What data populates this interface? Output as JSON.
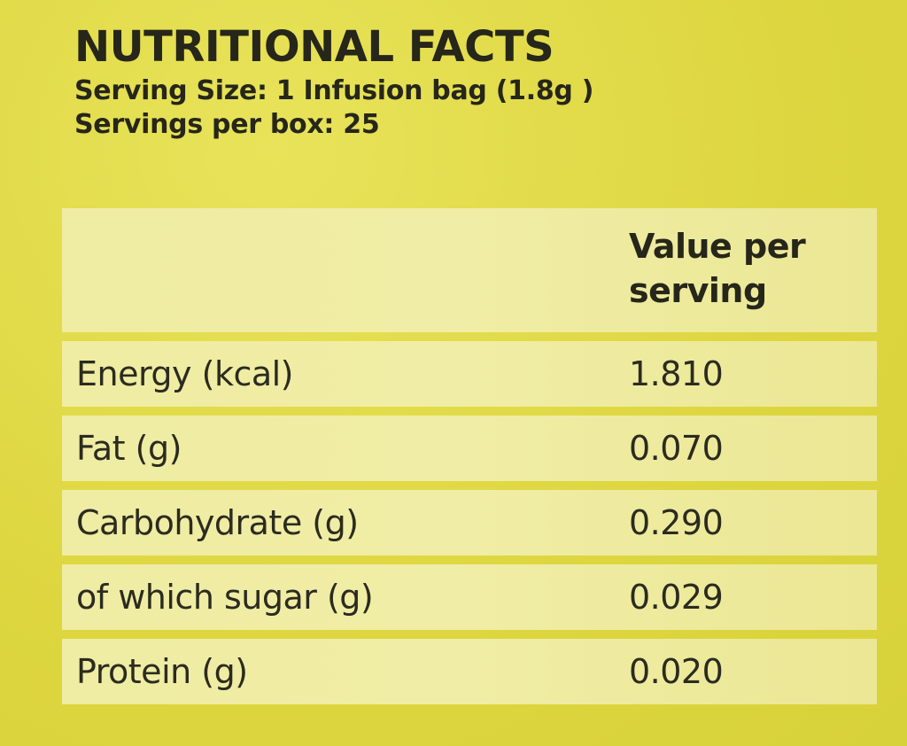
{
  "header": {
    "title": "NUTRITIONAL FACTS",
    "serving_size": "Serving Size: 1 Infusion bag (1.8g )",
    "servings_per_box": "Servings per box: 25"
  },
  "table": {
    "column_header": "Value per serving",
    "rows": [
      {
        "label": "Energy (kcal)",
        "value": "1.810"
      },
      {
        "label": "Fat (g)",
        "value": "0.070"
      },
      {
        "label": "Carbohydrate (g)",
        "value": "0.290"
      },
      {
        "label": "of which sugar (g)",
        "value": "0.029"
      },
      {
        "label": "Protein (g)",
        "value": "0.020"
      }
    ]
  }
}
